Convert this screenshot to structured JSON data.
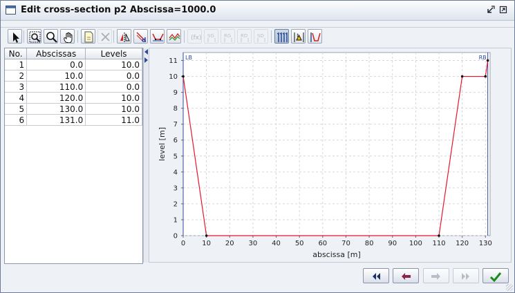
{
  "window": {
    "title": "Edit cross-section p2 Abscissa=1000.0",
    "icons": [
      "window-icon",
      "minimize-icon",
      "maximize-icon"
    ]
  },
  "toolbar": {
    "tools": [
      {
        "name": "select-tool",
        "icon": "arrow-cursor-icon",
        "active": false,
        "enabled": true
      },
      {
        "name": "zoom-box-tool",
        "icon": "zoom-box-icon",
        "active": false,
        "enabled": true
      },
      {
        "name": "zoom-tool",
        "icon": "magnifier-icon",
        "active": false,
        "enabled": true
      },
      {
        "name": "pan-tool",
        "icon": "hand-icon",
        "active": false,
        "enabled": true
      },
      {
        "name": "new-point-tool",
        "icon": "new-document-icon",
        "active": false,
        "enabled": true
      },
      {
        "name": "delete-point-tool",
        "icon": "delete-x-icon",
        "active": false,
        "enabled": false
      },
      {
        "name": "mirror-tool",
        "icon": "mirror-icon",
        "active": false,
        "enabled": true
      },
      {
        "name": "shift-x-tool",
        "icon": "shift-d-icon",
        "active": false,
        "enabled": true
      },
      {
        "name": "profile-tool",
        "icon": "profile-icon",
        "active": false,
        "enabled": true
      },
      {
        "name": "compare-tool",
        "icon": "compare-icon",
        "active": false,
        "enabled": true
      },
      {
        "name": "fx-tool",
        "icon": "function-icon",
        "active": false,
        "enabled": false
      },
      {
        "name": "sg-tool",
        "icon": "sg-icon",
        "label": "SG",
        "active": false,
        "enabled": false
      },
      {
        "name": "rg-tool",
        "icon": "rg-icon",
        "label": "RG",
        "active": false,
        "enabled": false
      },
      {
        "name": "rd-tool",
        "icon": "rd-icon",
        "label": "RD",
        "active": false,
        "enabled": false
      },
      {
        "name": "sd-tool",
        "icon": "sd-icon",
        "label": "SD",
        "active": false,
        "enabled": false
      },
      {
        "name": "vertical-markers-tool",
        "icon": "vertical-markers-icon",
        "active": true,
        "enabled": true
      },
      {
        "name": "level-tool",
        "icon": "level-icon",
        "active": false,
        "enabled": true
      },
      {
        "name": "bank-tool",
        "icon": "bank-icon",
        "active": false,
        "enabled": true
      }
    ]
  },
  "table": {
    "headers": [
      "No.",
      "Abscissas",
      "Levels"
    ],
    "rows": [
      {
        "no": "1",
        "abscissa": "0.0",
        "level": "10.0"
      },
      {
        "no": "2",
        "abscissa": "10.0",
        "level": "0.0"
      },
      {
        "no": "3",
        "abscissa": "110.0",
        "level": "0.0"
      },
      {
        "no": "4",
        "abscissa": "120.0",
        "level": "10.0"
      },
      {
        "no": "5",
        "abscissa": "130.0",
        "level": "10.0"
      },
      {
        "no": "6",
        "abscissa": "131.0",
        "level": "11.0"
      }
    ]
  },
  "chart_data": {
    "type": "line",
    "xlabel": "abscissa [m]",
    "ylabel": "level [m]",
    "xlim": [
      0,
      132
    ],
    "ylim": [
      0,
      11.5
    ],
    "xticks": [
      0,
      10,
      20,
      30,
      40,
      50,
      60,
      70,
      80,
      90,
      100,
      110,
      120,
      130
    ],
    "yticks": [
      0,
      1,
      2,
      3,
      4,
      5,
      6,
      7,
      8,
      9,
      10,
      11
    ],
    "grid": true,
    "series": [
      {
        "color": "#e8132c",
        "x": [
          0,
          10,
          110,
          120,
          130,
          131
        ],
        "y": [
          10,
          0,
          0,
          10,
          10,
          11
        ]
      }
    ],
    "markers": [
      {
        "label": "LB",
        "x": 0,
        "color": "#2c4a9a"
      },
      {
        "label": "RB",
        "x": 131,
        "color": "#2c4a9a"
      }
    ]
  },
  "navigation": {
    "buttons": [
      {
        "name": "first-button",
        "icon": "double-left-arrow-icon",
        "enabled": true
      },
      {
        "name": "previous-button",
        "icon": "left-arrow-icon",
        "enabled": true
      },
      {
        "name": "next-button",
        "icon": "right-arrow-icon",
        "enabled": false
      },
      {
        "name": "last-button",
        "icon": "double-right-arrow-icon",
        "enabled": false
      },
      {
        "name": "ok-button",
        "icon": "checkmark-icon",
        "enabled": true
      }
    ]
  }
}
